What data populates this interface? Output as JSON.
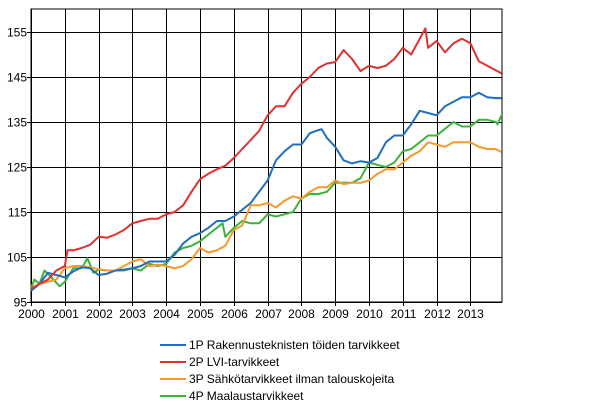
{
  "chart_data": {
    "type": "line",
    "title": "",
    "xlabel": "",
    "ylabel": "",
    "xlim": [
      2000,
      2013.92
    ],
    "ylim": [
      95,
      156
    ],
    "x_ticks": [
      "2000",
      "2001",
      "2002",
      "2003",
      "2004",
      "2005",
      "2006",
      "2007",
      "2008",
      "2009",
      "2010",
      "2011",
      "2012",
      "2013"
    ],
    "y_ticks": [
      "95",
      "105",
      "115",
      "125",
      "135",
      "145",
      "155"
    ],
    "grid": true,
    "legend_position": "bottom",
    "series": [
      {
        "name": "1P Rakennusteknisten  töiden tarvikkeet",
        "color": "#1f6ebf",
        "x": [
          2000,
          2000.25,
          2000.5,
          2000.75,
          2001,
          2001.25,
          2001.5,
          2001.75,
          2002,
          2002.25,
          2002.5,
          2002.75,
          2003,
          2003.25,
          2003.5,
          2003.75,
          2004,
          2004.25,
          2004.5,
          2004.75,
          2005,
          2005.25,
          2005.5,
          2005.75,
          2006,
          2006.25,
          2006.5,
          2006.75,
          2007,
          2007.25,
          2007.5,
          2007.75,
          2008,
          2008.25,
          2008.5,
          2008.6,
          2008.75,
          2009,
          2009.25,
          2009.5,
          2009.75,
          2010,
          2010.25,
          2010.5,
          2010.75,
          2011,
          2011.25,
          2011.5,
          2011.75,
          2012,
          2012.25,
          2012.5,
          2012.75,
          2013,
          2013.25,
          2013.5,
          2013.75,
          2013.92
        ],
        "y": [
          97.5,
          99,
          101.5,
          101,
          100.5,
          101.8,
          102.7,
          102.5,
          101,
          101.3,
          102,
          102.2,
          102.5,
          103,
          104,
          104,
          104,
          105.5,
          108,
          109.5,
          110.3,
          111.5,
          113,
          113,
          114,
          115.5,
          117,
          119.5,
          122,
          126.5,
          128.5,
          130,
          130,
          132.5,
          133.2,
          133.4,
          131.5,
          129.5,
          126.5,
          125.8,
          126.3,
          126,
          127,
          130.5,
          132,
          132,
          134.5,
          137.5,
          137,
          136.5,
          138.5,
          139.5,
          140.5,
          140.5,
          141.5,
          140.5,
          140.3,
          140.3
        ]
      },
      {
        "name": "2P LVI-tarvikkeet",
        "color": "#e03030",
        "x": [
          2000,
          2000.25,
          2000.5,
          2000.75,
          2001,
          2001.08,
          2001.25,
          2001.5,
          2001.75,
          2002,
          2002.25,
          2002.5,
          2002.75,
          2003,
          2003.25,
          2003.5,
          2003.75,
          2004,
          2004.25,
          2004.5,
          2004.75,
          2005,
          2005.25,
          2005.5,
          2005.75,
          2006,
          2006.25,
          2006.5,
          2006.75,
          2007,
          2007.25,
          2007.5,
          2007.75,
          2008,
          2008.25,
          2008.5,
          2008.75,
          2009,
          2009.25,
          2009.5,
          2009.75,
          2010,
          2010.25,
          2010.5,
          2010.75,
          2011,
          2011.25,
          2011.5,
          2011.67,
          2011.75,
          2012,
          2012.25,
          2012.5,
          2012.75,
          2013,
          2013.25,
          2013.5,
          2013.75,
          2013.92
        ],
        "y": [
          98,
          99,
          100,
          102,
          103,
          106.5,
          106.5,
          107,
          107.7,
          109.5,
          109.3,
          110,
          111,
          112.5,
          113,
          113.5,
          113.5,
          114.5,
          115,
          116.5,
          119.5,
          122.3,
          123.5,
          124.5,
          125.3,
          127,
          129,
          131,
          133,
          136.5,
          138.5,
          138.5,
          141.5,
          143.5,
          145,
          147,
          148,
          148.3,
          151,
          149,
          146.3,
          147.5,
          147,
          147.5,
          149,
          151.5,
          150,
          153.5,
          155.8,
          151.5,
          153,
          150.5,
          152.5,
          153.5,
          152.5,
          148.5,
          147.5,
          146.5,
          145.8
        ]
      },
      {
        "name": "3P Sähkötarvikkeet ilman talouskojeita",
        "color": "#f7982a",
        "x": [
          2000,
          2000.25,
          2000.5,
          2000.75,
          2001,
          2001.25,
          2001.5,
          2001.75,
          2002,
          2002.25,
          2002.5,
          2002.75,
          2003,
          2003.25,
          2003.5,
          2003.75,
          2004,
          2004.25,
          2004.5,
          2004.75,
          2005,
          2005.25,
          2005.5,
          2005.75,
          2006,
          2006.25,
          2006.5,
          2006.75,
          2007,
          2007.25,
          2007.5,
          2007.75,
          2008,
          2008.25,
          2008.5,
          2008.75,
          2009,
          2009.25,
          2009.5,
          2009.75,
          2010,
          2010.25,
          2010.5,
          2010.75,
          2011,
          2011.25,
          2011.5,
          2011.75,
          2012,
          2012.25,
          2012.5,
          2012.75,
          2013,
          2013.25,
          2013.5,
          2013.75,
          2013.92
        ],
        "y": [
          98,
          99,
          99.5,
          100,
          102.5,
          103,
          103,
          102.7,
          102.3,
          102,
          102,
          103,
          104,
          104.5,
          103,
          103.3,
          103,
          102.5,
          103,
          104.5,
          107,
          106,
          106.5,
          107.5,
          111,
          112,
          116.5,
          116.5,
          117,
          116,
          117.5,
          118.5,
          118,
          119.5,
          120.5,
          120.5,
          122,
          121.2,
          121.5,
          121.5,
          122,
          123.5,
          124.5,
          124.5,
          126,
          127.5,
          128.5,
          130.5,
          130,
          129.5,
          130.5,
          130.5,
          130.5,
          129.5,
          129,
          129,
          128.3
        ]
      },
      {
        "name": "4P Maalaustarvikkeet",
        "color": "#3cb43c",
        "x": [
          2000,
          2000.1,
          2000.25,
          2000.4,
          2000.6,
          2000.85,
          2001,
          2001.25,
          2001.5,
          2001.67,
          2001.85,
          2002,
          2002.25,
          2002.5,
          2002.75,
          2003,
          2003.25,
          2003.5,
          2003.75,
          2004,
          2004.25,
          2004.5,
          2004.75,
          2005,
          2005.25,
          2005.5,
          2005.67,
          2005.75,
          2006,
          2006.25,
          2006.5,
          2006.75,
          2007,
          2007.25,
          2007.5,
          2007.75,
          2008,
          2008.25,
          2008.5,
          2008.75,
          2009,
          2009.25,
          2009.5,
          2009.75,
          2010,
          2010.25,
          2010.5,
          2010.75,
          2011,
          2011.25,
          2011.5,
          2011.75,
          2012,
          2012.25,
          2012.5,
          2012.75,
          2013,
          2013.25,
          2013.5,
          2013.75,
          2013.8,
          2013.92
        ],
        "y": [
          98,
          100,
          99,
          102,
          100.5,
          98.5,
          99.5,
          102.5,
          102.5,
          104.7,
          101.5,
          102.2,
          102,
          102,
          102,
          102.5,
          102,
          103.5,
          103,
          103.5,
          106,
          107,
          107.5,
          108.5,
          110,
          111.5,
          112.5,
          109.5,
          111.5,
          113,
          112.5,
          112.5,
          114.5,
          114,
          114.5,
          115,
          118,
          119,
          119,
          119.5,
          121.5,
          121.5,
          121.5,
          122.5,
          126,
          125.5,
          125,
          126,
          128.5,
          129,
          130.5,
          132,
          132,
          133.5,
          135,
          134,
          134,
          135.5,
          135.5,
          135,
          134.5,
          136.5
        ]
      }
    ]
  }
}
